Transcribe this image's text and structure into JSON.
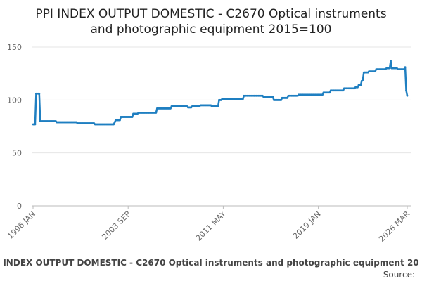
{
  "chart_data": {
    "type": "line",
    "title": [
      "PPI INDEX OUTPUT DOMESTIC - C2670 Optical instruments",
      "and photographic equipment 2015=100"
    ],
    "footer_title": "INDEX OUTPUT DOMESTIC - C2670 Optical instruments and photographic equipment 20",
    "source": "Source:",
    "color": "#1f7fc1",
    "grid": true,
    "ylim": [
      0,
      150
    ],
    "yticks": [
      0,
      50,
      100,
      150
    ],
    "categories": [
      "1996 JAN",
      null,
      null,
      null,
      null,
      null,
      null,
      null,
      null,
      null,
      null,
      null,
      null,
      null,
      null,
      null,
      null,
      null,
      null,
      null,
      null,
      null,
      null,
      null,
      null,
      null,
      null,
      null,
      null,
      null,
      null,
      null,
      null,
      null,
      null,
      null,
      null,
      null,
      null,
      null,
      null,
      null,
      null,
      null,
      null,
      null,
      null,
      null,
      null,
      null,
      null,
      null,
      null,
      null,
      null,
      null,
      null,
      null,
      null,
      null,
      null,
      null,
      null,
      null,
      null,
      null,
      null,
      null,
      null,
      null,
      null,
      null,
      null,
      null,
      null,
      null,
      null,
      null,
      null,
      null,
      null,
      null,
      null,
      null,
      null,
      null,
      null,
      null,
      null,
      null,
      null,
      null,
      "2003 SEP",
      null,
      null,
      null,
      null,
      null,
      null,
      null,
      null,
      null,
      null,
      null,
      null,
      null,
      null,
      null,
      null,
      null,
      null,
      null,
      null,
      null,
      null,
      null,
      null,
      null,
      null,
      null,
      null,
      null,
      null,
      null,
      null,
      null,
      null,
      null,
      null,
      null,
      null,
      null,
      null,
      null,
      null,
      null,
      null,
      null,
      null,
      null,
      null,
      null,
      null,
      null,
      null,
      null,
      null,
      null,
      null,
      null,
      null,
      null,
      null,
      null,
      null,
      null,
      null,
      null,
      null,
      null,
      null,
      null,
      null,
      null,
      null,
      null,
      null,
      null,
      null,
      null,
      null,
      null,
      null,
      null,
      null,
      null,
      null,
      null,
      null,
      null,
      null,
      null,
      null,
      null,
      "2011 MAY",
      null,
      null,
      null,
      null,
      null,
      null,
      null,
      null,
      null,
      null,
      null,
      null,
      null,
      null,
      null,
      null,
      null,
      null,
      null,
      null,
      null,
      null,
      null,
      null,
      null,
      null,
      null,
      null,
      null,
      null,
      null,
      null,
      null,
      null,
      null,
      null,
      null,
      null,
      null,
      null,
      null,
      null,
      null,
      null,
      null,
      null,
      null,
      null,
      null,
      null,
      null,
      null,
      null,
      null,
      null,
      null,
      null,
      null,
      null,
      null,
      null,
      null,
      null,
      null,
      null,
      null,
      null,
      null,
      null,
      null,
      null,
      null,
      null,
      null,
      null,
      null,
      null,
      null,
      null,
      null,
      null,
      null,
      null,
      null,
      null,
      null,
      null,
      null,
      null,
      null,
      null,
      "2019 JAN",
      null,
      null,
      null,
      null,
      null,
      null,
      null,
      null,
      null,
      null,
      null,
      null,
      null,
      null,
      null,
      null,
      null,
      null,
      null,
      null,
      null,
      null,
      null,
      null,
      null,
      null,
      null,
      null,
      null,
      null,
      null,
      null,
      null,
      null,
      null,
      null,
      null,
      null,
      null,
      null,
      null,
      null,
      null,
      null,
      null,
      null,
      null,
      null,
      null,
      null,
      null,
      null,
      null,
      null,
      null,
      null,
      null,
      null,
      null,
      null,
      null,
      null,
      null,
      null,
      null,
      null,
      null,
      null,
      null,
      null,
      null,
      null,
      null,
      null,
      null,
      null,
      null,
      null,
      null,
      null,
      null,
      null,
      null,
      null,
      null,
      "2026 MAR"
    ],
    "values": [
      77,
      77,
      77,
      106,
      106,
      106,
      106,
      80,
      80,
      80,
      80,
      80,
      80,
      80,
      80,
      80,
      80,
      80,
      80,
      80,
      80,
      80,
      80,
      79,
      79,
      79,
      79,
      79,
      79,
      79,
      79,
      79,
      79,
      79,
      79,
      79,
      79,
      79,
      79,
      79,
      79,
      79,
      79,
      78,
      78,
      78,
      78,
      78,
      78,
      78,
      78,
      78,
      78,
      78,
      78,
      78,
      78,
      78,
      78,
      78,
      77,
      77,
      77,
      77,
      77,
      77,
      77,
      77,
      77,
      77,
      77,
      77,
      77,
      77,
      77,
      77,
      77,
      77,
      77,
      79,
      81,
      81,
      81,
      81,
      81,
      84,
      84,
      84,
      84,
      84,
      84,
      84,
      84,
      84,
      84,
      84,
      84,
      87,
      87,
      87,
      87,
      87,
      88,
      88,
      88,
      88,
      88,
      88,
      88,
      88,
      88,
      88,
      88,
      88,
      88,
      88,
      88,
      88,
      88,
      88,
      92,
      92,
      92,
      92,
      92,
      92,
      92,
      92,
      92,
      92,
      92,
      92,
      92,
      92,
      94,
      94,
      94,
      94,
      94,
      94,
      94,
      94,
      94,
      94,
      94,
      94,
      94,
      94,
      94,
      94,
      93,
      93,
      93,
      93,
      94,
      94,
      94,
      94,
      94,
      94,
      94,
      94,
      95,
      95,
      95,
      95,
      95,
      95,
      95,
      95,
      95,
      95,
      95,
      94,
      94,
      94,
      94,
      94,
      94,
      94,
      100,
      100,
      100,
      101,
      101,
      101,
      101,
      101,
      101,
      101,
      101,
      101,
      101,
      101,
      101,
      101,
      101,
      101,
      101,
      101,
      101,
      101,
      101,
      101,
      104,
      104,
      104,
      104,
      104,
      104,
      104,
      104,
      104,
      104,
      104,
      104,
      104,
      104,
      104,
      104,
      104,
      104,
      104,
      103,
      103,
      103,
      103,
      103,
      103,
      103,
      103,
      103,
      103,
      100,
      100,
      100,
      100,
      100,
      100,
      100,
      100,
      102,
      102,
      102,
      102,
      102,
      102,
      104,
      104,
      104,
      104,
      104,
      104,
      104,
      104,
      104,
      104,
      105,
      105,
      105,
      105,
      105,
      105,
      105,
      105,
      105,
      105,
      105,
      105,
      105,
      105,
      105,
      105,
      105,
      105,
      105,
      105,
      105,
      105,
      105,
      105,
      107,
      107,
      107,
      107,
      107,
      107,
      107,
      109,
      109,
      109,
      109,
      109,
      109,
      109,
      109,
      109,
      109,
      109,
      109,
      109,
      111,
      111,
      111,
      111,
      111,
      111,
      111,
      111,
      111,
      111,
      111,
      112,
      112,
      112,
      114,
      114,
      114,
      118,
      119,
      126,
      126,
      126,
      126,
      126,
      127,
      127,
      127,
      127,
      127,
      127,
      127,
      129,
      129,
      129,
      129,
      129,
      129,
      129,
      129,
      129,
      129,
      130,
      130,
      130,
      130,
      137,
      130,
      130,
      130,
      130,
      130,
      130,
      129,
      129,
      129,
      129,
      129,
      129,
      129,
      131,
      109,
      104
    ]
  }
}
